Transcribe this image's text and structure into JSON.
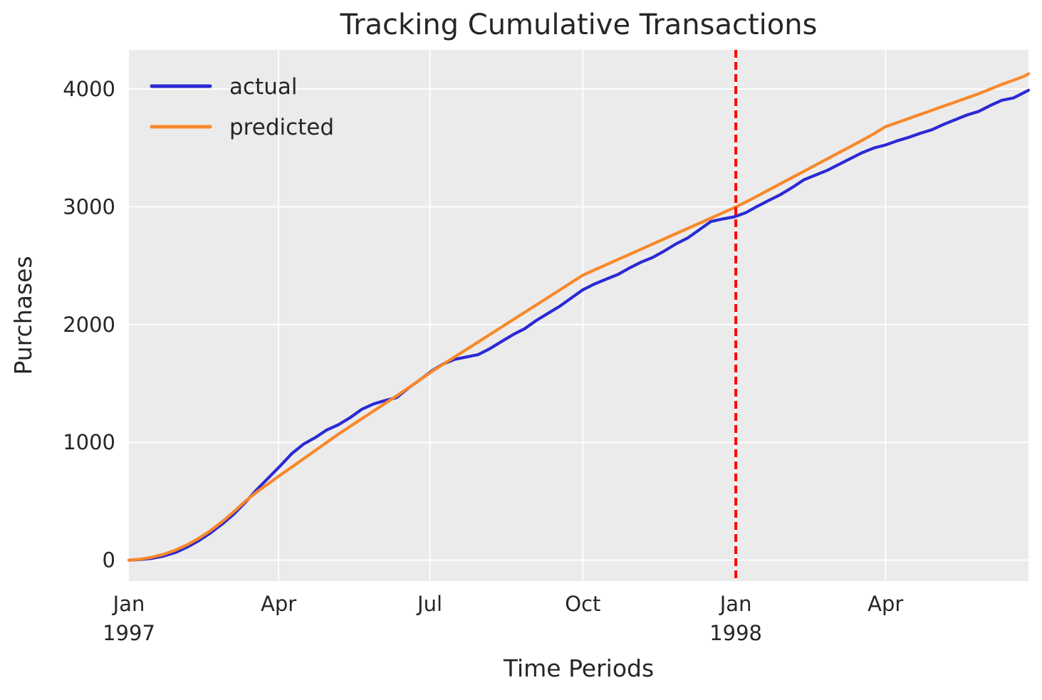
{
  "figure": {
    "background": "#ffffff",
    "plot_background": "#ebebeb",
    "grid_color": "#ffffff",
    "text_color": "#262626"
  },
  "chart_data": {
    "type": "line",
    "title": "Tracking Cumulative Transactions",
    "xlabel": "Time Periods",
    "ylabel": "Purchases",
    "x_unit": "days since 1997-01-01",
    "xlim": [
      0,
      541
    ],
    "ylim": [
      -178,
      4333
    ],
    "grid": true,
    "legend_position": "upper left",
    "y_ticks": [
      {
        "value": 0,
        "label": "0"
      },
      {
        "value": 1000,
        "label": "1000"
      },
      {
        "value": 2000,
        "label": "2000"
      },
      {
        "value": 3000,
        "label": "3000"
      },
      {
        "value": 4000,
        "label": "4000"
      }
    ],
    "x_ticks": [
      {
        "day": 0,
        "label": "Jan",
        "sublabel": "1997"
      },
      {
        "day": 90,
        "label": "Apr",
        "sublabel": ""
      },
      {
        "day": 181,
        "label": "Jul",
        "sublabel": ""
      },
      {
        "day": 273,
        "label": "Oct",
        "sublabel": ""
      },
      {
        "day": 365,
        "label": "Jan",
        "sublabel": "1998"
      },
      {
        "day": 455,
        "label": "Apr",
        "sublabel": ""
      }
    ],
    "x_days": [
      0,
      7,
      14,
      21,
      28,
      35,
      42,
      49,
      56,
      63,
      70,
      77,
      84,
      91,
      98,
      105,
      112,
      119,
      126,
      133,
      140,
      147,
      154,
      161,
      168,
      175,
      182,
      189,
      196,
      203,
      210,
      217,
      224,
      231,
      238,
      245,
      252,
      259,
      266,
      273,
      280,
      287,
      294,
      301,
      308,
      315,
      322,
      329,
      336,
      343,
      350,
      357,
      364,
      371,
      378,
      385,
      392,
      399,
      406,
      413,
      420,
      427,
      434,
      441,
      448,
      455,
      462,
      469,
      476,
      483,
      490,
      497,
      504,
      511,
      518,
      525,
      532,
      539,
      541
    ],
    "series": [
      {
        "name": "actual",
        "color": "#2a2ad5",
        "values": [
          0,
          5,
          15,
          35,
          65,
          110,
          165,
          230,
          305,
          390,
          490,
          600,
          700,
          800,
          905,
          985,
          1040,
          1105,
          1150,
          1210,
          1280,
          1325,
          1355,
          1380,
          1460,
          1530,
          1605,
          1665,
          1705,
          1725,
          1745,
          1795,
          1855,
          1915,
          1965,
          2035,
          2095,
          2155,
          2225,
          2295,
          2345,
          2385,
          2425,
          2480,
          2530,
          2570,
          2625,
          2685,
          2735,
          2805,
          2875,
          2897,
          2915,
          2950,
          3005,
          3055,
          3105,
          3165,
          3230,
          3270,
          3310,
          3360,
          3410,
          3460,
          3500,
          3525,
          3560,
          3590,
          3625,
          3655,
          3700,
          3740,
          3780,
          3810,
          3860,
          3905,
          3925,
          3975,
          3990
        ]
      },
      {
        "name": "predicted",
        "color": "#f8882a",
        "values": [
          0,
          8,
          25,
          50,
          85,
          130,
          185,
          250,
          325,
          410,
          500,
          580,
          650,
          722,
          790,
          860,
          930,
          1000,
          1070,
          1135,
          1200,
          1265,
          1330,
          1395,
          1462,
          1530,
          1600,
          1663,
          1726,
          1789,
          1852,
          1915,
          1978,
          2041,
          2104,
          2167,
          2230,
          2293,
          2356,
          2419,
          2464,
          2508,
          2552,
          2596,
          2640,
          2684,
          2728,
          2772,
          2816,
          2860,
          2904,
          2948,
          2992,
          3040,
          3092,
          3145,
          3197,
          3250,
          3302,
          3355,
          3407,
          3460,
          3512,
          3565,
          3620,
          3680,
          3715,
          3750,
          3785,
          3820,
          3855,
          3890,
          3925,
          3960,
          4000,
          4040,
          4075,
          4112,
          4130
        ]
      }
    ],
    "vline": {
      "day": 365,
      "color": "#ff0000",
      "style": "dashed"
    }
  }
}
